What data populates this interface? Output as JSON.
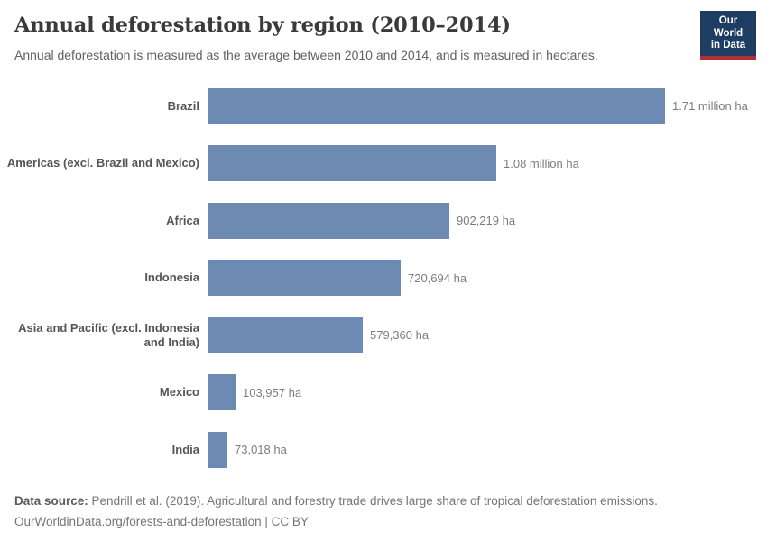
{
  "header": {
    "title": "Annual deforestation by region (2010–2014)",
    "subtitle": "Annual deforestation is measured as the average between 2010 and 2014, and is measured in hectares."
  },
  "logo": {
    "line1": "Our World",
    "line2": "in Data"
  },
  "colors": {
    "bar": "#6c8ab2",
    "logo_bg": "#1d3d63",
    "logo_accent": "#b52e35",
    "axis_line": "#c3c3c3",
    "title_text": "#3a3a3a",
    "category_text": "#555555",
    "value_text": "#7c7c7c"
  },
  "chart_data": {
    "type": "bar",
    "orientation": "horizontal",
    "title": "Annual deforestation by region (2010–2014)",
    "subtitle": "Annual deforestation is measured as the average between 2010 and 2014, and is measured in hectares.",
    "unit": "hectares",
    "grid": false,
    "legend": "none",
    "xlim": [
      0,
      1710000
    ],
    "categories": [
      "Brazil",
      "Americas (excl. Brazil and Mexico)",
      "Africa",
      "Indonesia",
      "Asia and Pacific (excl. Indonesia and India)",
      "Mexico",
      "India"
    ],
    "values": [
      1710000,
      1080000,
      902219,
      720694,
      579360,
      103957,
      73018
    ],
    "value_labels": [
      "1.71 million ha",
      "1.08 million ha",
      "902,219 ha",
      "720,694 ha",
      "579,360 ha",
      "103,957 ha",
      "73,018 ha"
    ]
  },
  "footer": {
    "source_label": "Data source:",
    "source_text": "Pendrill et al. (2019). Agricultural and forestry trade drives large share of tropical deforestation emissions.",
    "citation": "OurWorldinData.org/forests-and-deforestation | CC BY"
  }
}
